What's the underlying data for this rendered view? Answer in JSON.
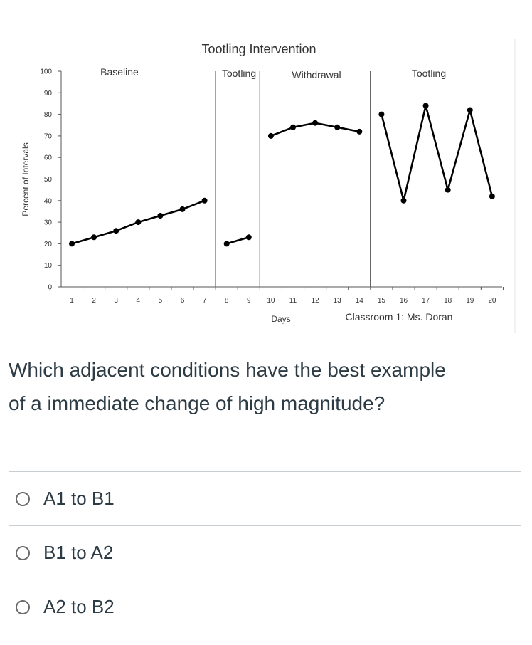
{
  "question": {
    "text_line1": "Which adjacent conditions have the best example",
    "text_line2": "of a immediate change of high magnitude?"
  },
  "answers": [
    {
      "label": "A1 to B1"
    },
    {
      "label": "B1 to A2"
    },
    {
      "label": "A2 to B2"
    }
  ],
  "chart_data": {
    "type": "line",
    "title": "Tootling Intervention",
    "xlabel": "Days",
    "ylabel": "Percent of Intervals",
    "caption": "Classroom 1: Ms. Doran",
    "ylim": [
      0,
      100
    ],
    "yticks": [
      0,
      10,
      20,
      30,
      40,
      50,
      60,
      70,
      80,
      90,
      100
    ],
    "xticks": [
      1,
      2,
      3,
      4,
      5,
      6,
      7,
      8,
      9,
      10,
      11,
      12,
      13,
      14,
      15,
      16,
      17,
      18,
      19,
      20
    ],
    "phases": [
      {
        "label": "Baseline",
        "x": [
          1,
          2,
          3,
          4,
          5,
          6,
          7
        ],
        "y": [
          20,
          23,
          26,
          30,
          33,
          36,
          40
        ]
      },
      {
        "label": "Tootling",
        "x": [
          8,
          9
        ],
        "y": [
          20,
          23
        ]
      },
      {
        "label": "Withdrawal",
        "x": [
          10,
          11,
          12,
          13,
          14
        ],
        "y": [
          70,
          74,
          76,
          74,
          72
        ]
      },
      {
        "label": "Tootling",
        "x": [
          15,
          16,
          17,
          18,
          19,
          20
        ],
        "y": [
          80,
          40,
          84,
          45,
          82,
          42
        ]
      }
    ],
    "phase_change_after": [
      7.5,
      9.5,
      14.5
    ],
    "grid": false,
    "line_color": "#000000",
    "axis_color": "#555555"
  }
}
